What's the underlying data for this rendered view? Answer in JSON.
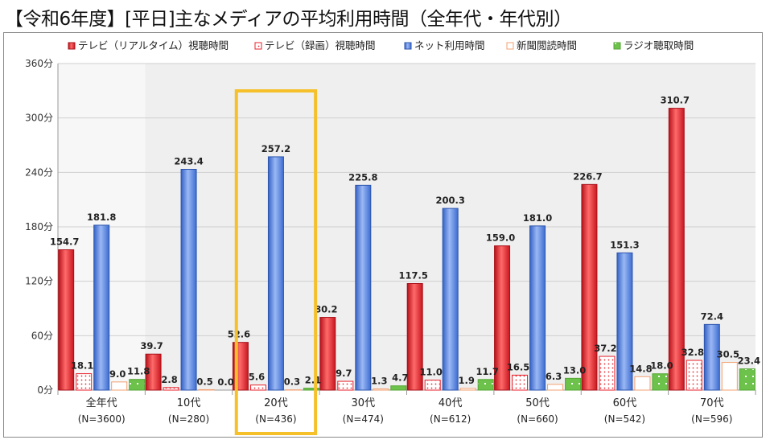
{
  "page_title": "【令和6年度】[平日]主なメディアの平均利用時間（全年代・年代別）",
  "colors": {
    "tv_real": "#e8212b",
    "tv_rec": "#e8212b",
    "net": "#4d7fe0",
    "newspaper": "#f3a072",
    "radio": "#6cc24a",
    "highlight": "#f5c02a"
  },
  "chart_data": {
    "type": "bar",
    "title": "【令和6年度】[平日]主なメディアの平均利用時間（全年代・年代別）",
    "categories": [
      "全年代",
      "10代",
      "20代",
      "30代",
      "40代",
      "50代",
      "60代",
      "70代"
    ],
    "category_notes": [
      "(N=3600)",
      "(N=280)",
      "(N=436)",
      "(N=474)",
      "(N=612)",
      "(N=660)",
      "(N=542)",
      "(N=596)"
    ],
    "highlight_category": "20代",
    "ylim": [
      0,
      360
    ],
    "yticks": [
      "0分",
      "60分",
      "120分",
      "180分",
      "240分",
      "300分",
      "360分"
    ],
    "ytick_values": [
      0,
      60,
      120,
      180,
      240,
      300,
      360
    ],
    "grid": true,
    "legend_position": "top",
    "series": [
      {
        "name": "テレビ（リアルタイム）視聴時間",
        "values": [
          154.7,
          39.7,
          52.6,
          80.2,
          117.5,
          159.0,
          226.7,
          310.7
        ],
        "labels": [
          "154.7",
          "39.7",
          "52.6",
          "80.2",
          "117.5",
          "159.0",
          "226.7",
          "310.7"
        ]
      },
      {
        "name": "テレビ（録画）視聴時間",
        "values": [
          18.1,
          2.8,
          5.6,
          9.7,
          11.0,
          16.5,
          37.2,
          32.8
        ],
        "labels": [
          "18.1",
          "2.8",
          "5.6",
          "9.7",
          "11.0",
          "16.5",
          "37.2",
          "32.8"
        ]
      },
      {
        "name": "ネット利用時間",
        "values": [
          181.8,
          243.4,
          257.2,
          225.8,
          200.3,
          181.0,
          151.3,
          72.4
        ],
        "labels": [
          "181.8",
          "243.4",
          "257.2",
          "225.8",
          "200.3",
          "181.0",
          "151.3",
          "72.4"
        ]
      },
      {
        "name": "新聞閲読時間",
        "values": [
          9.0,
          0.5,
          0.3,
          1.3,
          1.9,
          6.3,
          14.8,
          30.5
        ],
        "labels": [
          "9.0",
          "0.5",
          "0.3",
          "1.3",
          "1.9",
          "6.3",
          "14.8",
          "30.5"
        ]
      },
      {
        "name": "ラジオ聴取時間",
        "values": [
          11.8,
          0.0,
          2.1,
          4.7,
          11.7,
          13.0,
          18.0,
          23.4
        ],
        "labels": [
          "11.8",
          "0.0",
          "2.1",
          "4.7",
          "11.7",
          "13.0",
          "18.0",
          "23.4"
        ]
      }
    ]
  }
}
